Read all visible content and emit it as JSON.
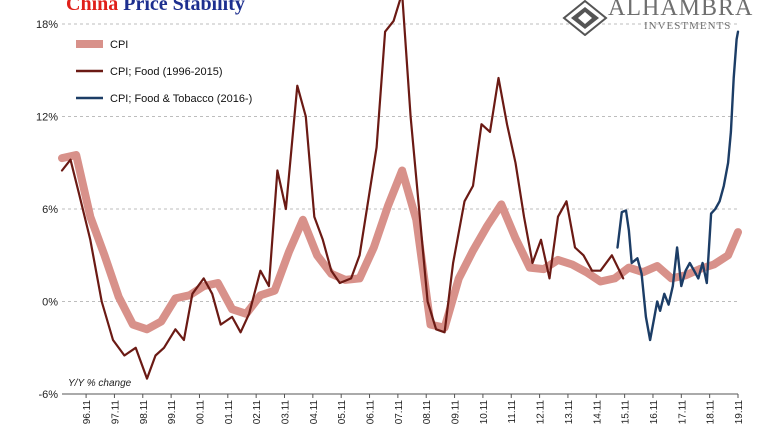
{
  "title": {
    "part1": "China",
    "part2": "Price Stability"
  },
  "logo": {
    "brand": "ALHAMBRA",
    "sub": "INVESTMENTS"
  },
  "colors": {
    "cpi": "#d8918a",
    "food": "#6b1a14",
    "tobacco": "#1c3d66",
    "grid": "#bdbdbd"
  },
  "chart_data": {
    "type": "line",
    "ylim": [
      -6,
      18
    ],
    "yticks": [
      "-6%",
      "0%",
      "6%",
      "12%",
      "18%"
    ],
    "ytick_values": [
      -6,
      0,
      6,
      12,
      18
    ],
    "annotation": "Y/Y % change",
    "xtick_labels": [
      "96.11",
      "97.11",
      "98.11",
      "99.11",
      "00.11",
      "01.11",
      "02.11",
      "03.11",
      "04.11",
      "05.11",
      "06.11",
      "07.11",
      "08.11",
      "09.11",
      "10.11",
      "11.11",
      "12.11",
      "13.11",
      "14.11",
      "15.11",
      "16.11",
      "17.11",
      "18.11",
      "19.11"
    ],
    "xlim": [
      1996.0,
      2019.85
    ],
    "grid": true,
    "legend": "top-left",
    "series": [
      {
        "name": "CPI",
        "key": "cpi",
        "x": [
          1996.0,
          1996.5,
          1997.0,
          1997.5,
          1998.0,
          1998.5,
          1999.0,
          1999.5,
          2000.0,
          2000.5,
          2001.0,
          2001.5,
          2002.0,
          2002.5,
          2003.0,
          2003.5,
          2004.0,
          2004.5,
          2005.0,
          2005.5,
          2006.0,
          2006.5,
          2007.0,
          2007.5,
          2008.0,
          2008.5,
          2009.0,
          2009.5,
          2010.0,
          2010.5,
          2011.0,
          2011.5,
          2012.0,
          2012.5,
          2013.0,
          2013.5,
          2014.0,
          2014.5,
          2015.0,
          2015.5,
          2016.0,
          2016.5,
          2017.0,
          2017.5,
          2018.0,
          2018.5,
          2019.0,
          2019.5,
          2019.85
        ],
        "values": [
          9.3,
          9.5,
          5.5,
          3.0,
          0.3,
          -1.5,
          -1.8,
          -1.3,
          0.2,
          0.4,
          1.0,
          1.2,
          -0.5,
          -0.8,
          0.4,
          0.7,
          3.2,
          5.3,
          3.0,
          1.8,
          1.4,
          1.5,
          3.5,
          6.2,
          8.5,
          5.3,
          -1.5,
          -1.7,
          1.5,
          3.3,
          4.9,
          6.3,
          4.1,
          2.2,
          2.1,
          2.7,
          2.4,
          1.9,
          1.3,
          1.5,
          2.2,
          1.9,
          2.3,
          1.5,
          1.7,
          2.1,
          2.4,
          3.0,
          4.5
        ]
      },
      {
        "name": "CPI; Food (1996-2015)",
        "key": "food",
        "x": [
          1996.0,
          1996.3,
          1996.6,
          1997.0,
          1997.4,
          1997.8,
          1998.2,
          1998.6,
          1999.0,
          1999.3,
          1999.6,
          2000.0,
          2000.3,
          2000.6,
          2001.0,
          2001.3,
          2001.6,
          2002.0,
          2002.3,
          2002.6,
          2003.0,
          2003.3,
          2003.6,
          2003.9,
          2004.3,
          2004.6,
          2004.9,
          2005.2,
          2005.5,
          2005.8,
          2006.2,
          2006.5,
          2006.8,
          2007.1,
          2007.4,
          2007.7,
          2008.0,
          2008.3,
          2008.6,
          2008.9,
          2009.2,
          2009.5,
          2009.8,
          2010.2,
          2010.5,
          2010.8,
          2011.1,
          2011.4,
          2011.7,
          2012.0,
          2012.3,
          2012.6,
          2012.9,
          2013.2,
          2013.5,
          2013.8,
          2014.1,
          2014.4,
          2014.7,
          2015.0,
          2015.4,
          2015.8
        ],
        "values": [
          8.5,
          9.2,
          7.0,
          4.0,
          0.0,
          -2.5,
          -3.5,
          -3.0,
          -5.0,
          -3.5,
          -3.0,
          -1.8,
          -2.5,
          0.5,
          1.5,
          0.5,
          -1.5,
          -1.0,
          -2.0,
          -0.8,
          2.0,
          1.0,
          8.5,
          6.0,
          14.0,
          12.0,
          5.5,
          4.0,
          2.0,
          1.2,
          1.5,
          3.0,
          6.5,
          10.0,
          17.5,
          18.2,
          20.0,
          12.0,
          6.0,
          0.0,
          -1.8,
          -2.0,
          2.5,
          6.5,
          7.5,
          11.5,
          11.0,
          14.5,
          11.5,
          9.0,
          5.5,
          2.5,
          4.0,
          1.5,
          5.5,
          6.5,
          3.5,
          3.0,
          2.0,
          2.0,
          3.0,
          1.5
        ]
      },
      {
        "name": "CPI; Food & Tobacco (2016-)",
        "key": "tobacco",
        "x": [
          2015.6,
          2015.75,
          2015.9,
          2016.0,
          2016.1,
          2016.3,
          2016.45,
          2016.6,
          2016.75,
          2016.9,
          2017.0,
          2017.1,
          2017.25,
          2017.4,
          2017.55,
          2017.7,
          2017.85,
          2018.0,
          2018.15,
          2018.3,
          2018.45,
          2018.6,
          2018.75,
          2018.9,
          2019.05,
          2019.2,
          2019.35,
          2019.5,
          2019.6,
          2019.7,
          2019.8,
          2019.85
        ],
        "values": [
          3.5,
          5.8,
          5.9,
          4.6,
          2.5,
          2.8,
          1.8,
          -1.0,
          -2.5,
          -1.0,
          0.0,
          -0.6,
          0.5,
          -0.2,
          1.0,
          3.5,
          1.0,
          2.0,
          2.5,
          2.0,
          1.5,
          2.5,
          1.2,
          5.7,
          6.0,
          6.5,
          7.5,
          9.0,
          11.0,
          14.5,
          17.0,
          17.5
        ]
      }
    ]
  }
}
